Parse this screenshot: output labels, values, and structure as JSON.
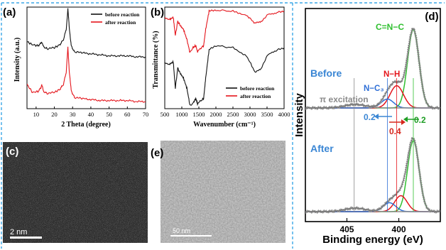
{
  "colors": {
    "frame_dash": "#3ba7e6",
    "before": "#111111",
    "after": "#e4141b",
    "green": "#2fbf2f",
    "blue": "#2f6fd6",
    "gray": "#8a8a8a",
    "note_blue": "#3a86d4",
    "note_red": "#d6261c",
    "note_green": "#1f9e25"
  },
  "panel_labels": {
    "a": "(a)",
    "b": "(b)",
    "c": "(c)",
    "d": "(d)",
    "e": "(e)"
  },
  "chart_data": [
    {
      "id": "a",
      "type": "line",
      "xlabel": "2 Theta (degree)",
      "ylabel": "Intensity (a.u.)",
      "xlim": [
        5,
        70
      ],
      "xticks": [
        10,
        20,
        30,
        40,
        50,
        60,
        70
      ],
      "yticks_shown": false,
      "legend": {
        "placement": "top-right"
      },
      "series": [
        {
          "name": "before reaction",
          "color": "#111111",
          "x": [
            5,
            8,
            11,
            12.5,
            13.1,
            14,
            16,
            20,
            23,
            25,
            26.5,
            27.4,
            28.2,
            29.2,
            31,
            35,
            40,
            45,
            50,
            55,
            60,
            65,
            70
          ],
          "y": [
            0.66,
            0.63,
            0.62,
            0.64,
            0.66,
            0.61,
            0.59,
            0.6,
            0.63,
            0.68,
            0.78,
            0.98,
            0.8,
            0.62,
            0.56,
            0.55,
            0.54,
            0.53,
            0.52,
            0.52,
            0.52,
            0.51,
            0.51
          ]
        },
        {
          "name": "after reaction",
          "color": "#e4141b",
          "x": [
            5,
            8,
            11,
            12.5,
            13.1,
            14,
            16,
            20,
            23,
            25,
            26.5,
            27.4,
            28.2,
            29.2,
            31,
            35,
            40,
            45,
            50,
            55,
            60,
            65,
            70
          ],
          "y": [
            0.24,
            0.16,
            0.17,
            0.2,
            0.24,
            0.17,
            0.15,
            0.16,
            0.19,
            0.24,
            0.36,
            0.6,
            0.37,
            0.18,
            0.11,
            0.1,
            0.09,
            0.08,
            0.08,
            0.08,
            0.08,
            0.07,
            0.07
          ]
        }
      ]
    },
    {
      "id": "b",
      "type": "line",
      "xlabel": "Wavenumber (cm⁻¹)",
      "ylabel": "Transmittance (%)",
      "xlim": [
        500,
        4000
      ],
      "xticks": [
        500,
        1000,
        1500,
        2000,
        2500,
        3000,
        3500,
        4000
      ],
      "yticks_shown": false,
      "legend": {
        "placement": "bottom-right"
      },
      "series": [
        {
          "name": "before reaction",
          "color": "#111111",
          "x": [
            500,
            650,
            750,
            810,
            880,
            950,
            1050,
            1150,
            1240,
            1320,
            1410,
            1460,
            1570,
            1640,
            1700,
            1800,
            2000,
            2500,
            2900,
            3150,
            3300,
            3500,
            3800,
            4000
          ],
          "y": [
            0.45,
            0.44,
            0.46,
            0.2,
            0.4,
            0.35,
            0.3,
            0.2,
            0.03,
            0.05,
            0.1,
            0.05,
            0.08,
            0.1,
            0.3,
            0.58,
            0.62,
            0.6,
            0.52,
            0.36,
            0.38,
            0.52,
            0.58,
            0.6
          ]
        },
        {
          "name": "after reaction",
          "color": "#e4141b",
          "x": [
            500,
            650,
            750,
            810,
            880,
            950,
            1050,
            1150,
            1240,
            1320,
            1410,
            1460,
            1570,
            1640,
            1700,
            1800,
            2000,
            2500,
            2900,
            3150,
            3300,
            3500,
            3800,
            4000
          ],
          "y": [
            0.9,
            0.88,
            0.9,
            0.72,
            0.86,
            0.82,
            0.78,
            0.68,
            0.55,
            0.6,
            0.62,
            0.56,
            0.6,
            0.62,
            0.78,
            0.96,
            0.97,
            0.96,
            0.92,
            0.84,
            0.85,
            0.92,
            0.95,
            0.96
          ]
        }
      ]
    },
    {
      "id": "d",
      "type": "line",
      "xlabel": "Binding energy (eV)",
      "ylabel": "Intensity (a.u.)",
      "xlim": [
        409,
        396
      ],
      "xticks": [
        405,
        400
      ],
      "legend": {
        "placement": "none"
      },
      "panels": [
        {
          "label": "Before",
          "components": [
            {
              "label": "C=N−C",
              "center": 398.6,
              "height": 0.88,
              "width": 0.55,
              "color": "#2fbf2f"
            },
            {
              "label": "N−H",
              "center": 400.2,
              "height": 0.25,
              "width": 0.65,
              "color": "#e4141b"
            },
            {
              "label": "N−C₃",
              "center": 401.1,
              "height": 0.1,
              "width": 0.6,
              "color": "#2f6fd6"
            },
            {
              "label": "π excitation",
              "center": 404.2,
              "height": 0.04,
              "width": 1.0,
              "color": "#8a8a8a"
            }
          ]
        },
        {
          "label": "After",
          "components": [
            {
              "label": "C=N−C",
              "center": 398.6,
              "height": 0.8,
              "width": 0.55,
              "color": "#2fbf2f"
            },
            {
              "label": "N−H",
              "center": 399.8,
              "height": 0.18,
              "width": 0.6,
              "color": "#e4141b"
            },
            {
              "label": "N−C₃",
              "center": 400.9,
              "height": 0.1,
              "width": 0.6,
              "color": "#2f6fd6"
            },
            {
              "label": "π excitation",
              "center": 404.2,
              "height": 0.04,
              "width": 1.0,
              "color": "#8a8a8a"
            }
          ]
        }
      ],
      "reference_lines": [
        404.3,
        401.1,
        400.2,
        398.6
      ],
      "shift_labels": [
        "0.2",
        "0.4",
        "0.2"
      ]
    }
  ],
  "images": {
    "c": {
      "scale_bar": "2 nm"
    },
    "e": {
      "scale_bar": "50 nm"
    }
  }
}
